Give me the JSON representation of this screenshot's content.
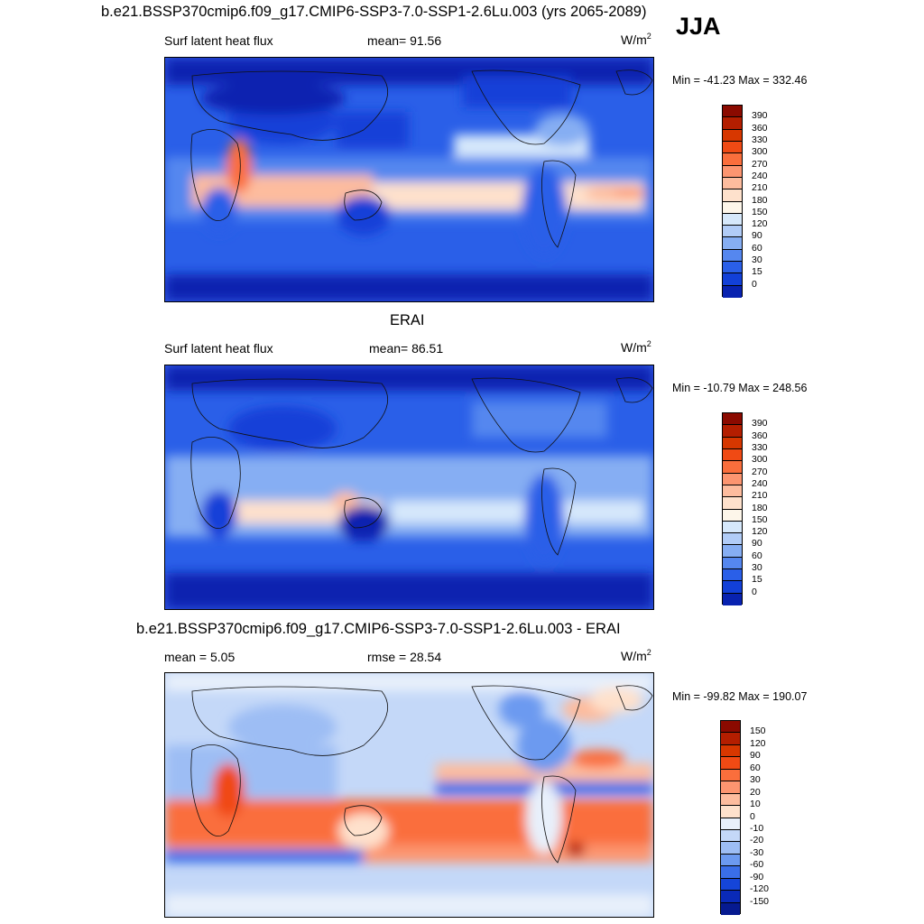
{
  "season": "JJA",
  "panels": [
    {
      "title": "b.e21.BSSP370cmip6.f09_g17.CMIP6-SSP3-7.0-SSP1-2.6Lu.003 (yrs 2065-2089)",
      "left": "Surf latent heat flux",
      "center": "mean=  91.56",
      "units_base": "W/m",
      "units_exp": "2",
      "minmax": "Min = -41.23 Max = 332.46",
      "colorbar": {
        "labels": [
          "390",
          "360",
          "330",
          "300",
          "270",
          "240",
          "210",
          "180",
          "150",
          "120",
          "90",
          "60",
          "30",
          "15",
          "0"
        ],
        "colors": [
          "#8b0a00",
          "#b41e00",
          "#d73700",
          "#f04a14",
          "#fa6e3c",
          "#fc9570",
          "#fdbc9e",
          "#fee1cc",
          "#fdf6ea",
          "#d6e8fb",
          "#b1ccf7",
          "#86aef3",
          "#5587ef",
          "#2a5fe8",
          "#1240d8",
          "#0822b0"
        ]
      }
    },
    {
      "title": "ERAI",
      "left": "Surf latent heat flux",
      "center": "mean=  86.51",
      "units_base": "W/m",
      "units_exp": "2",
      "minmax": "Min = -10.79 Max = 248.56",
      "colorbar": {
        "labels": [
          "390",
          "360",
          "330",
          "300",
          "270",
          "240",
          "210",
          "180",
          "150",
          "120",
          "90",
          "60",
          "30",
          "15",
          "0"
        ],
        "colors": [
          "#8b0a00",
          "#b41e00",
          "#d73700",
          "#f04a14",
          "#fa6e3c",
          "#fc9570",
          "#fdbc9e",
          "#fee1cc",
          "#fdf6ea",
          "#d6e8fb",
          "#b1ccf7",
          "#86aef3",
          "#5587ef",
          "#2a5fe8",
          "#1240d8",
          "#0822b0"
        ]
      }
    },
    {
      "title": "b.e21.BSSP370cmip6.f09_g17.CMIP6-SSP3-7.0-SSP1-2.6Lu.003 - ERAI",
      "left": "mean =   5.05",
      "center": "rmse =  28.54",
      "units_base": "W/m",
      "units_exp": "2",
      "minmax": "Min = -99.82 Max = 190.07",
      "colorbar": {
        "labels": [
          "150",
          "120",
          "90",
          "60",
          "30",
          "20",
          "10",
          "0",
          "-10",
          "-20",
          "-30",
          "-60",
          "-90",
          "-120",
          "-150"
        ],
        "colors": [
          "#8b0a00",
          "#b41e00",
          "#d73700",
          "#f04a14",
          "#fa6e3c",
          "#fc9570",
          "#fdbc9e",
          "#fee1cc",
          "#e8f0fb",
          "#c4d8f8",
          "#9dbdf4",
          "#6c9af0",
          "#3a6ee8",
          "#1545d8",
          "#0a2ab8",
          "#061a90"
        ]
      }
    }
  ]
}
